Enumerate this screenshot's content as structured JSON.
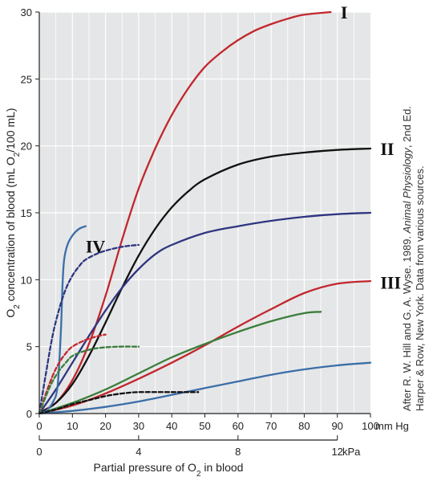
{
  "chart_data": {
    "type": "line",
    "ylabel_parts": [
      "O",
      "2",
      " concentration of blood (mL O",
      "2",
      "/100 mL)"
    ],
    "xlabel_parts": [
      "Partial pressure of O",
      "2",
      " in blood"
    ],
    "x_unit": "mm Hg",
    "x2_unit": "kPa",
    "xlim": [
      0,
      100
    ],
    "ylim": [
      0,
      30
    ],
    "x_ticks": [
      "0",
      "10",
      "20",
      "30",
      "40",
      "50",
      "60",
      "70",
      "80",
      "90",
      "100"
    ],
    "y_ticks": [
      "0",
      "5",
      "10",
      "15",
      "20",
      "25",
      "30"
    ],
    "kpa_ticks": [
      {
        "label": "0",
        "x": 0
      },
      {
        "label": "4",
        "x": 30
      },
      {
        "label": "8",
        "x": 60
      },
      {
        "label": "12",
        "x": 90
      }
    ],
    "grid": true,
    "curve_labels": [
      {
        "text": "I",
        "x": 91,
        "y": 30
      },
      {
        "text": "II",
        "x": 103,
        "y": 19.8
      },
      {
        "text": "III",
        "x": 103,
        "y": 9.8
      },
      {
        "text": "IV",
        "x": 14,
        "y": 12.5
      }
    ],
    "series": [
      {
        "color": "#c1272d",
        "dash": false,
        "points": [
          [
            0,
            0.1
          ],
          [
            5,
            0.8
          ],
          [
            10,
            2.5
          ],
          [
            15,
            5.2
          ],
          [
            20,
            8.8
          ],
          [
            25,
            13
          ],
          [
            30,
            16.8
          ],
          [
            35,
            19.8
          ],
          [
            40,
            22.3
          ],
          [
            45,
            24.3
          ],
          [
            50,
            25.9
          ],
          [
            55,
            27
          ],
          [
            60,
            27.9
          ],
          [
            65,
            28.6
          ],
          [
            70,
            29.1
          ],
          [
            75,
            29.5
          ],
          [
            80,
            29.8
          ],
          [
            88,
            30
          ]
        ]
      },
      {
        "color": "#111111",
        "dash": false,
        "points": [
          [
            0,
            0
          ],
          [
            5,
            0.8
          ],
          [
            10,
            2.2
          ],
          [
            15,
            4.3
          ],
          [
            20,
            6.8
          ],
          [
            25,
            9.4
          ],
          [
            30,
            11.8
          ],
          [
            35,
            13.8
          ],
          [
            40,
            15.4
          ],
          [
            45,
            16.6
          ],
          [
            50,
            17.5
          ],
          [
            60,
            18.6
          ],
          [
            70,
            19.2
          ],
          [
            80,
            19.5
          ],
          [
            90,
            19.7
          ],
          [
            100,
            19.8
          ]
        ]
      },
      {
        "color": "#c1272d",
        "dash": false,
        "points": [
          [
            0,
            0
          ],
          [
            10,
            0.6
          ],
          [
            20,
            1.5
          ],
          [
            30,
            2.6
          ],
          [
            40,
            3.8
          ],
          [
            50,
            5.1
          ],
          [
            60,
            6.5
          ],
          [
            70,
            7.8
          ],
          [
            80,
            9
          ],
          [
            90,
            9.7
          ],
          [
            100,
            9.9
          ]
        ]
      },
      {
        "color": "#2e3580",
        "dash": false,
        "points": [
          [
            0,
            0
          ],
          [
            5,
            1.8
          ],
          [
            10,
            3.8
          ],
          [
            15,
            5.8
          ],
          [
            20,
            7.7
          ],
          [
            25,
            9.4
          ],
          [
            30,
            10.8
          ],
          [
            35,
            11.9
          ],
          [
            40,
            12.6
          ],
          [
            50,
            13.5
          ],
          [
            60,
            14
          ],
          [
            70,
            14.4
          ],
          [
            80,
            14.7
          ],
          [
            90,
            14.9
          ],
          [
            100,
            15
          ]
        ]
      },
      {
        "color": "#3a7d3a",
        "dash": false,
        "points": [
          [
            0,
            0
          ],
          [
            10,
            0.8
          ],
          [
            20,
            1.8
          ],
          [
            30,
            3
          ],
          [
            40,
            4.2
          ],
          [
            50,
            5.2
          ],
          [
            60,
            6.1
          ],
          [
            70,
            6.9
          ],
          [
            80,
            7.5
          ],
          [
            85,
            7.6
          ]
        ]
      },
      {
        "color": "#3b6ea8",
        "dash": false,
        "points": [
          [
            0,
            0
          ],
          [
            10,
            0.2
          ],
          [
            20,
            0.5
          ],
          [
            30,
            0.9
          ],
          [
            40,
            1.4
          ],
          [
            50,
            1.9
          ],
          [
            60,
            2.4
          ],
          [
            70,
            2.9
          ],
          [
            80,
            3.3
          ],
          [
            90,
            3.6
          ],
          [
            100,
            3.8
          ]
        ]
      },
      {
        "color": "#3b6ea8",
        "dash": false,
        "points": [
          [
            0,
            0
          ],
          [
            2,
            0.2
          ],
          [
            4,
            0.8
          ],
          [
            5.5,
            2
          ],
          [
            6.5,
            6
          ],
          [
            7,
            9.5
          ],
          [
            7.5,
            11.5
          ],
          [
            8.5,
            12.6
          ],
          [
            10,
            13.3
          ],
          [
            12,
            13.8
          ],
          [
            14,
            14
          ]
        ]
      },
      {
        "color": "#2e3580",
        "dash": true,
        "points": [
          [
            0,
            0
          ],
          [
            2,
            3
          ],
          [
            4,
            5.8
          ],
          [
            6,
            7.8
          ],
          [
            8,
            9.3
          ],
          [
            10,
            10.3
          ],
          [
            12,
            11
          ],
          [
            14,
            11.5
          ],
          [
            18,
            12
          ],
          [
            22,
            12.3
          ],
          [
            26,
            12.5
          ],
          [
            30,
            12.6
          ]
        ]
      },
      {
        "color": "#c1272d",
        "dash": true,
        "points": [
          [
            0,
            0
          ],
          [
            2,
            1.5
          ],
          [
            4,
            2.8
          ],
          [
            6,
            3.8
          ],
          [
            8,
            4.5
          ],
          [
            10,
            5
          ],
          [
            14,
            5.5
          ],
          [
            18,
            5.8
          ],
          [
            20,
            5.9
          ]
        ]
      },
      {
        "color": "#3a7d3a",
        "dash": true,
        "points": [
          [
            0,
            0
          ],
          [
            2,
            1.3
          ],
          [
            4,
            2.4
          ],
          [
            6,
            3.2
          ],
          [
            8,
            3.8
          ],
          [
            10,
            4.3
          ],
          [
            14,
            4.7
          ],
          [
            18,
            4.9
          ],
          [
            24,
            5
          ],
          [
            30,
            5
          ]
        ]
      },
      {
        "color": "#111111",
        "dash": true,
        "points": [
          [
            0,
            0
          ],
          [
            5,
            0.3
          ],
          [
            10,
            0.7
          ],
          [
            15,
            1
          ],
          [
            20,
            1.3
          ],
          [
            25,
            1.5
          ],
          [
            30,
            1.6
          ],
          [
            40,
            1.6
          ],
          [
            48,
            1.6
          ]
        ]
      }
    ],
    "credit": {
      "line1_pre": "After R. W. Hill and G. A. Wyse. 1989. ",
      "line1_italic": "Animal Physiology",
      "line1_post": ", 2nd Ed.",
      "line2": "Harper & Row, New York. Data from various sources."
    }
  }
}
